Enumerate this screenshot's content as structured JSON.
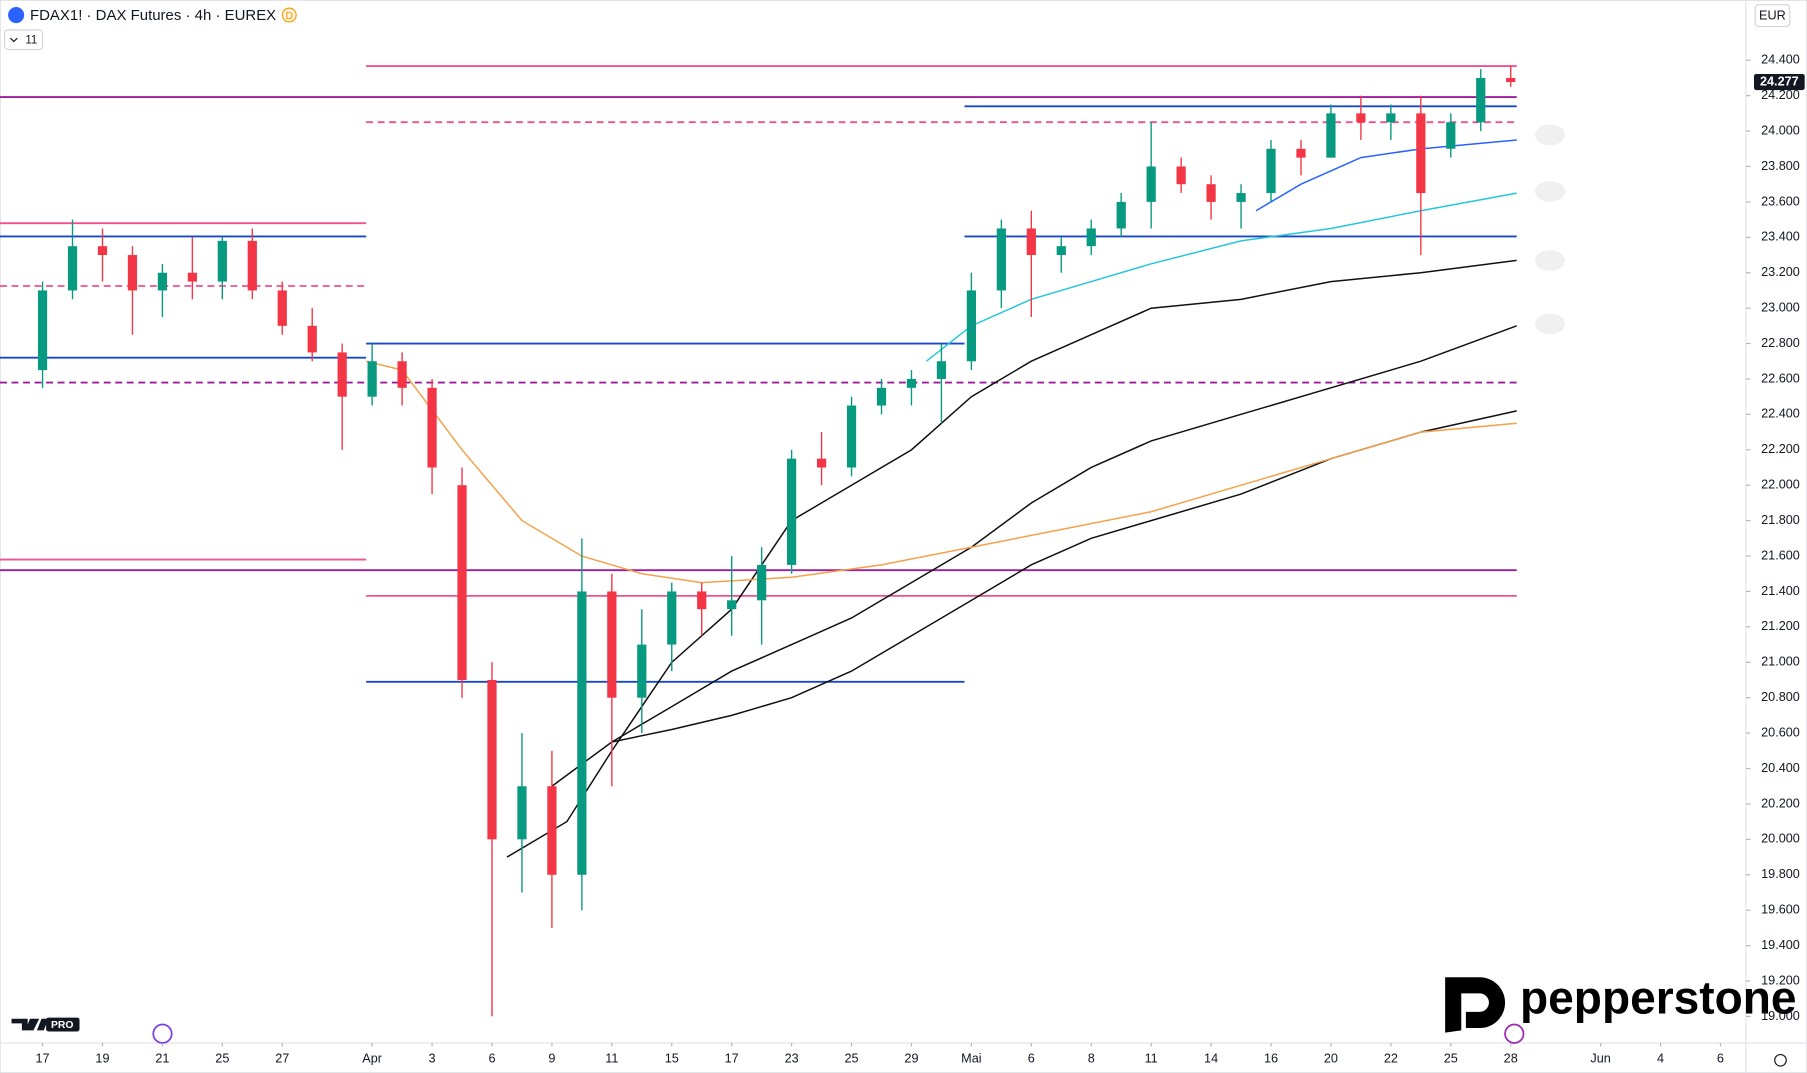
{
  "header": {
    "symbol": "FDAX1! · DAX Futures · 4h · EUREX",
    "badge": "D",
    "indicator_count": "11",
    "currency": "EUR"
  },
  "branding": {
    "platform_badge": "PRO",
    "broker": "pepperstone"
  },
  "chart_data": {
    "type": "candlestick",
    "last_price": {
      "value": 24277,
      "label": "24.277"
    },
    "xlim": [
      -1.42,
      56.85
    ],
    "ylim": [
      18850,
      24740
    ],
    "yticks": [
      {
        "value": 19000,
        "label": "19.000"
      },
      {
        "value": 19200,
        "label": "19.200"
      },
      {
        "value": 19400,
        "label": "19.400"
      },
      {
        "value": 19600,
        "label": "19.600"
      },
      {
        "value": 19800,
        "label": "19.800"
      },
      {
        "value": 20000,
        "label": "20.000"
      },
      {
        "value": 20200,
        "label": "20.200"
      },
      {
        "value": 20400,
        "label": "20.400"
      },
      {
        "value": 20600,
        "label": "20.600"
      },
      {
        "value": 20800,
        "label": "20.800"
      },
      {
        "value": 21000,
        "label": "21.000"
      },
      {
        "value": 21200,
        "label": "21.200"
      },
      {
        "value": 21400,
        "label": "21.400"
      },
      {
        "value": 21600,
        "label": "21.600"
      },
      {
        "value": 21800,
        "label": "21.800"
      },
      {
        "value": 22000,
        "label": "22.000"
      },
      {
        "value": 22200,
        "label": "22.200"
      },
      {
        "value": 22400,
        "label": "22.400"
      },
      {
        "value": 22600,
        "label": "22.600"
      },
      {
        "value": 22800,
        "label": "22.800"
      },
      {
        "value": 23000,
        "label": "23.000"
      },
      {
        "value": 23200,
        "label": "23.200"
      },
      {
        "value": 23400,
        "label": "23.400"
      },
      {
        "value": 23600,
        "label": "23.600"
      },
      {
        "value": 23800,
        "label": "23.800"
      },
      {
        "value": 24000,
        "label": "24.000"
      },
      {
        "value": 24200,
        "label": "24.200"
      },
      {
        "value": 24400,
        "label": "24.400"
      }
    ],
    "xticks": [
      {
        "value": 0,
        "label": "17"
      },
      {
        "value": 2,
        "label": "19"
      },
      {
        "value": 4,
        "label": "21"
      },
      {
        "value": 6,
        "label": "25"
      },
      {
        "value": 8,
        "label": "27"
      },
      {
        "value": 11,
        "label": "Apr"
      },
      {
        "value": 13,
        "label": "3"
      },
      {
        "value": 15,
        "label": "6"
      },
      {
        "value": 17,
        "label": "9"
      },
      {
        "value": 19,
        "label": "11"
      },
      {
        "value": 21,
        "label": "15"
      },
      {
        "value": 23,
        "label": "17"
      },
      {
        "value": 25,
        "label": "23"
      },
      {
        "value": 27,
        "label": "25"
      },
      {
        "value": 29,
        "label": "29"
      },
      {
        "value": 31,
        "label": "Mai"
      },
      {
        "value": 33,
        "label": "6"
      },
      {
        "value": 35,
        "label": "8"
      },
      {
        "value": 37,
        "label": "11"
      },
      {
        "value": 39,
        "label": "14"
      },
      {
        "value": 41,
        "label": "16"
      },
      {
        "value": 43,
        "label": "20"
      },
      {
        "value": 45,
        "label": "22"
      },
      {
        "value": 47,
        "label": "25"
      },
      {
        "value": 49,
        "label": "28"
      },
      {
        "value": 52,
        "label": "Jun"
      },
      {
        "value": 54,
        "label": "4"
      },
      {
        "value": 56,
        "label": "6"
      }
    ],
    "up_color": "#089981",
    "down_color": "#f23645",
    "candles": {
      "x": [
        0,
        1,
        2,
        3,
        4,
        5,
        6,
        7,
        8,
        9,
        10,
        11,
        12,
        13,
        14,
        15,
        16,
        17,
        18,
        19,
        20,
        21,
        22,
        23,
        24,
        25,
        26,
        27,
        28,
        29,
        30,
        31,
        32,
        33,
        34,
        35,
        36,
        37,
        38,
        39,
        40,
        41,
        42,
        43,
        44,
        45,
        46,
        47,
        48,
        49
      ],
      "open": [
        22650,
        23100,
        23350,
        23300,
        23100,
        23200,
        23150,
        23380,
        23100,
        22900,
        22750,
        22500,
        22700,
        22550,
        22000,
        20900,
        20000,
        20300,
        19800,
        21400,
        20800,
        21100,
        21400,
        21300,
        21350,
        21550,
        22150,
        22100,
        22450,
        22550,
        22600,
        22700,
        23100,
        23450,
        23300,
        23350,
        23450,
        23600,
        23800,
        23700,
        23600,
        23650,
        23900,
        23850,
        24100,
        24050,
        24100,
        23900,
        24050,
        24300
      ],
      "high": [
        23150,
        23500,
        23450,
        23350,
        23250,
        23400,
        23400,
        23450,
        23150,
        23000,
        22800,
        22800,
        22750,
        22600,
        22100,
        21000,
        20600,
        20500,
        21700,
        21500,
        21300,
        21450,
        21450,
        21600,
        21650,
        22200,
        22300,
        22500,
        22600,
        22650,
        22800,
        23200,
        23500,
        23550,
        23400,
        23500,
        23650,
        24050,
        23850,
        23750,
        23700,
        23950,
        23950,
        24150,
        24200,
        24150,
        24200,
        24100,
        24350,
        24370
      ],
      "low": [
        22550,
        23050,
        23150,
        22850,
        22950,
        23050,
        23050,
        23050,
        22850,
        22700,
        22200,
        22450,
        22450,
        21950,
        20800,
        19000,
        19700,
        19500,
        19600,
        20300,
        20600,
        20950,
        21150,
        21150,
        21100,
        21500,
        22000,
        22050,
        22400,
        22450,
        22350,
        22650,
        23000,
        22950,
        23200,
        23300,
        23400,
        23450,
        23650,
        23500,
        23450,
        23600,
        23750,
        23850,
        23950,
        23950,
        23300,
        23850,
        24000,
        24250
      ],
      "close": [
        23100,
        23350,
        23300,
        23100,
        23200,
        23150,
        23380,
        23100,
        22900,
        22750,
        22500,
        22700,
        22550,
        22100,
        20900,
        20000,
        20300,
        19800,
        21400,
        20800,
        21100,
        21400,
        21300,
        21350,
        21550,
        22150,
        22100,
        22450,
        22550,
        22600,
        22700,
        23100,
        23450,
        23300,
        23350,
        23450,
        23600,
        23800,
        23700,
        23600,
        23650,
        23900,
        23850,
        24100,
        24050,
        24100,
        23650,
        24050,
        24300,
        24277
      ]
    },
    "levels": [
      {
        "value": 24367,
        "x": [
          10.8,
          49.2
        ],
        "color": "#f0508c",
        "dashed": false
      },
      {
        "value": 24192,
        "x": [
          -1.42,
          49.2
        ],
        "color": "#9c1c9c",
        "dashed": false
      },
      {
        "value": 24140,
        "x": [
          30.77,
          49.2
        ],
        "color": "#1848c8",
        "dashed": false
      },
      {
        "value": 24050,
        "x": [
          10.8,
          49.2
        ],
        "color": "#f0508c",
        "dashed": true
      },
      {
        "value": 23480,
        "x": [
          -1.42,
          10.8
        ],
        "color": "#f0508c",
        "dashed": false
      },
      {
        "value": 23405,
        "x": [
          -1.42,
          10.8
        ],
        "color": "#1848c8",
        "dashed": false
      },
      {
        "value": 23405,
        "x": [
          30.77,
          49.2
        ],
        "color": "#1848c8",
        "dashed": false
      },
      {
        "value": 23125,
        "x": [
          -1.42,
          10.8
        ],
        "color": "#f0508c",
        "dashed": true
      },
      {
        "value": 22800,
        "x": [
          10.8,
          30.77
        ],
        "color": "#1848c8",
        "dashed": false
      },
      {
        "value": 22720,
        "x": [
          -1.42,
          10.8
        ],
        "color": "#1848c8",
        "dashed": false
      },
      {
        "value": 22580,
        "x": [
          -1.42,
          49.2
        ],
        "color": "#9c1c9c",
        "dashed": true
      },
      {
        "value": 21580,
        "x": [
          -1.42,
          10.8
        ],
        "color": "#f0508c",
        "dashed": false
      },
      {
        "value": 21520,
        "x": [
          -1.42,
          49.2
        ],
        "color": "#9c1c9c",
        "dashed": false
      },
      {
        "value": 21375,
        "x": [
          10.8,
          49.2
        ],
        "color": "#f0508c",
        "dashed": false
      },
      {
        "value": 20890,
        "x": [
          10.8,
          30.77
        ],
        "color": "#1848c8",
        "dashed": false
      }
    ],
    "moving_averages": [
      {
        "color": "#111111",
        "x": [
          15.5,
          17.5,
          19,
          21,
          23,
          25,
          27,
          29,
          31,
          33,
          35,
          37,
          40,
          43,
          46,
          49.2
        ],
        "values": [
          19900,
          20100,
          20500,
          21000,
          21300,
          21800,
          22000,
          22200,
          22500,
          22700,
          22850,
          23000,
          23050,
          23150,
          23200,
          23270
        ]
      },
      {
        "color": "#111111",
        "x": [
          17,
          19,
          21,
          23,
          25,
          27,
          29,
          31,
          33,
          35,
          37,
          40,
          43,
          46,
          49.2
        ],
        "values": [
          20300,
          20550,
          20750,
          20950,
          21100,
          21250,
          21450,
          21650,
          21900,
          22100,
          22250,
          22400,
          22550,
          22700,
          22900
        ]
      },
      {
        "color": "#111111",
        "x": [
          19,
          21,
          23,
          25,
          27,
          29,
          31,
          33,
          35,
          37,
          40,
          43,
          46,
          49.2
        ],
        "values": [
          20550,
          20620,
          20700,
          20800,
          20950,
          21150,
          21350,
          21550,
          21700,
          21800,
          21950,
          22150,
          22300,
          22420
        ]
      },
      {
        "color": "#f5a04a",
        "x": [
          10.8,
          12,
          14,
          16,
          18,
          20,
          22,
          25,
          28,
          31,
          34,
          37,
          40,
          43,
          46,
          49.2
        ],
        "values": [
          22700,
          22650,
          22200,
          21800,
          21600,
          21500,
          21450,
          21480,
          21550,
          21650,
          21750,
          21850,
          22000,
          22150,
          22300,
          22350
        ]
      },
      {
        "color": "#26c6da",
        "x": [
          29.5,
          31,
          33,
          35,
          37,
          40,
          43,
          46,
          49.2
        ],
        "values": [
          22700,
          22900,
          23050,
          23150,
          23250,
          23380,
          23450,
          23550,
          23650
        ]
      },
      {
        "color": "#2962ff",
        "x": [
          40.5,
          42,
          44,
          46,
          49.2
        ],
        "values": [
          23550,
          23700,
          23850,
          23900,
          23950
        ]
      }
    ]
  }
}
